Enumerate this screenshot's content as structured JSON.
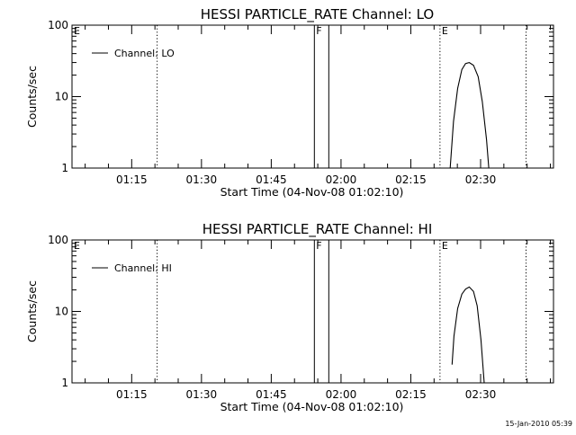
{
  "footer": {
    "timestamp": "15-Jan-2010 05:39"
  },
  "chart_data": [
    {
      "type": "line",
      "title": "HESSI PARTICLE_RATE Channel: LO",
      "xlabel": "Start Time (04-Nov-08 01:02:10)",
      "ylabel": "Counts/sec",
      "x_range_minutes_after_start": [
        0,
        103.5
      ],
      "x_ticks": [
        {
          "label": "01:15",
          "minute": 12.83
        },
        {
          "label": "01:30",
          "minute": 27.83
        },
        {
          "label": "01:45",
          "minute": 42.83
        },
        {
          "label": "02:00",
          "minute": 57.83
        },
        {
          "label": "02:15",
          "minute": 72.83
        },
        {
          "label": "02:30",
          "minute": 87.83
        }
      ],
      "y_scale": "log",
      "ylim": [
        1,
        100
      ],
      "y_ticks": [
        {
          "label": "1",
          "value": 1
        },
        {
          "label": "10",
          "value": 10
        },
        {
          "label": "100",
          "value": 100
        }
      ],
      "legend": {
        "placement": "top-left",
        "entries": [
          "Channel: LO"
        ]
      },
      "markers": [
        {
          "label": "E",
          "minute": 0,
          "style": "solid"
        },
        {
          "label": "",
          "minute": 18.3,
          "style": "dotted"
        },
        {
          "label": "F",
          "minute": 52.1,
          "style": "solid"
        },
        {
          "label": "",
          "minute": 55.2,
          "style": "solid"
        },
        {
          "label": "E",
          "minute": 79.1,
          "style": "dotted"
        },
        {
          "label": "",
          "minute": 97.6,
          "style": "dotted"
        }
      ],
      "series": [
        {
          "name": "Channel: LO",
          "x": [
            81.3,
            82.0,
            82.9,
            83.8,
            84.6,
            85.4,
            86.3,
            87.3,
            88.2,
            89.1,
            89.6
          ],
          "y": [
            1.0,
            4.5,
            13.0,
            24.0,
            29.0,
            30.0,
            27.5,
            19.0,
            8.5,
            2.5,
            1.0
          ]
        }
      ]
    },
    {
      "type": "line",
      "title": "HESSI PARTICLE_RATE Channel: HI",
      "xlabel": "Start Time (04-Nov-08 01:02:10)",
      "ylabel": "Counts/sec",
      "x_range_minutes_after_start": [
        0,
        103.5
      ],
      "x_ticks": [
        {
          "label": "01:15",
          "minute": 12.83
        },
        {
          "label": "01:30",
          "minute": 27.83
        },
        {
          "label": "01:45",
          "minute": 42.83
        },
        {
          "label": "02:00",
          "minute": 57.83
        },
        {
          "label": "02:15",
          "minute": 72.83
        },
        {
          "label": "02:30",
          "minute": 87.83
        }
      ],
      "y_scale": "log",
      "ylim": [
        1,
        100
      ],
      "y_ticks": [
        {
          "label": "1",
          "value": 1
        },
        {
          "label": "10",
          "value": 10
        },
        {
          "label": "100",
          "value": 100
        }
      ],
      "legend": {
        "placement": "top-left",
        "entries": [
          "Channel: HI"
        ]
      },
      "markers": [
        {
          "label": "E",
          "minute": 0,
          "style": "solid"
        },
        {
          "label": "",
          "minute": 18.3,
          "style": "dotted"
        },
        {
          "label": "F",
          "minute": 52.1,
          "style": "solid"
        },
        {
          "label": "",
          "minute": 55.2,
          "style": "solid"
        },
        {
          "label": "E",
          "minute": 79.1,
          "style": "dotted"
        },
        {
          "label": "",
          "minute": 97.6,
          "style": "dotted"
        }
      ],
      "series": [
        {
          "name": "Channel: HI",
          "x": [
            81.7,
            82.1,
            82.9,
            83.8,
            84.6,
            85.4,
            86.3,
            87.1,
            87.9,
            88.6
          ],
          "y": [
            1.8,
            4.5,
            11.0,
            17.5,
            20.5,
            22.0,
            19.0,
            12.0,
            4.0,
            1.0
          ]
        }
      ]
    }
  ]
}
